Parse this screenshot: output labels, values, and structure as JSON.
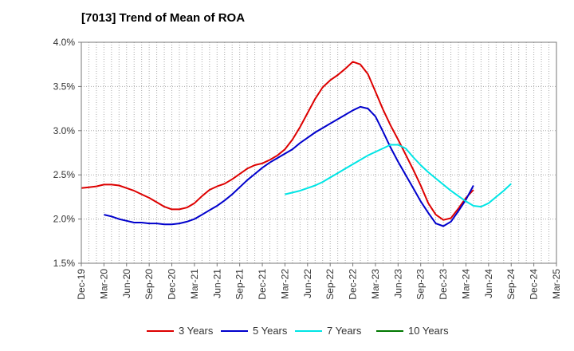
{
  "chart_data": {
    "type": "line",
    "title": "[7013]  Trend of Mean of ROA",
    "xlabel": "",
    "ylabel": "",
    "ylim": [
      1.5,
      4.0
    ],
    "y_ticks": [
      "1.5%",
      "2.0%",
      "2.5%",
      "3.0%",
      "3.5%",
      "4.0%"
    ],
    "y_tick_values": [
      1.5,
      2.0,
      2.5,
      3.0,
      3.5,
      4.0
    ],
    "x_ticks": [
      "Dec-19",
      "Mar-20",
      "Jun-20",
      "Sep-20",
      "Dec-20",
      "Mar-21",
      "Jun-21",
      "Sep-21",
      "Dec-21",
      "Mar-22",
      "Jun-22",
      "Sep-22",
      "Dec-22",
      "Mar-23",
      "Jun-23",
      "Sep-23",
      "Dec-23",
      "Mar-24",
      "Jun-24",
      "Sep-24",
      "Dec-24",
      "Mar-25"
    ],
    "grid": true,
    "legend_position": "bottom",
    "series": [
      {
        "name": "3 Years",
        "color": "#dd0000",
        "start_index": 0,
        "values": [
          2.35,
          2.36,
          2.37,
          2.39,
          2.39,
          2.38,
          2.35,
          2.32,
          2.28,
          2.24,
          2.19,
          2.14,
          2.11,
          2.11,
          2.13,
          2.18,
          2.26,
          2.33,
          2.37,
          2.4,
          2.45,
          2.51,
          2.57,
          2.61,
          2.63,
          2.67,
          2.72,
          2.79,
          2.9,
          3.04,
          3.2,
          3.36,
          3.49,
          3.57,
          3.63,
          3.7,
          3.78,
          3.75,
          3.64,
          3.44,
          3.24,
          3.06,
          2.9,
          2.73,
          2.56,
          2.38,
          2.18,
          2.05,
          1.99,
          2.01,
          2.12,
          2.24,
          2.33
        ]
      },
      {
        "name": "5 Years",
        "color": "#0000cc",
        "start_index": 3,
        "values": [
          2.05,
          2.03,
          2.0,
          1.98,
          1.96,
          1.96,
          1.95,
          1.95,
          1.94,
          1.94,
          1.95,
          1.97,
          2.0,
          2.05,
          2.1,
          2.15,
          2.21,
          2.28,
          2.36,
          2.44,
          2.51,
          2.58,
          2.64,
          2.69,
          2.74,
          2.79,
          2.86,
          2.92,
          2.98,
          3.03,
          3.08,
          3.13,
          3.18,
          3.23,
          3.27,
          3.25,
          3.16,
          2.99,
          2.81,
          2.65,
          2.5,
          2.35,
          2.2,
          2.07,
          1.95,
          1.92,
          1.97,
          2.09,
          2.22,
          2.38
        ]
      },
      {
        "name": "7 Years",
        "color": "#00e5e5",
        "start_index": 27,
        "values": [
          2.28,
          2.3,
          2.32,
          2.35,
          2.38,
          2.42,
          2.47,
          2.52,
          2.57,
          2.62,
          2.67,
          2.72,
          2.76,
          2.8,
          2.84,
          2.84,
          2.8,
          2.7,
          2.61,
          2.53,
          2.46,
          2.39,
          2.32,
          2.26,
          2.2,
          2.15,
          2.14,
          2.18,
          2.25,
          2.32,
          2.4
        ]
      },
      {
        "name": "10 Years",
        "color": "#007700",
        "start_index": 0,
        "values": []
      }
    ]
  }
}
